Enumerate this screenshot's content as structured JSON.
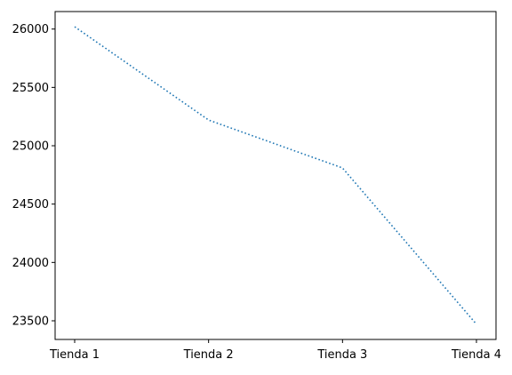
{
  "chart_data": {
    "type": "line",
    "categories": [
      "Tienda 1",
      "Tienda 2",
      "Tienda 3",
      "Tienda 4"
    ],
    "series": [
      {
        "values": [
          26020,
          25220,
          24810,
          23470
        ],
        "color": "#1f77b4",
        "line_style": "dotted"
      }
    ],
    "yticks": [
      "23500",
      "24000",
      "24500",
      "25000",
      "25500",
      "26000"
    ],
    "ylim": [
      23340,
      26150
    ],
    "title": "",
    "xlabel": "",
    "ylabel": "",
    "grid": false,
    "legend": false
  }
}
